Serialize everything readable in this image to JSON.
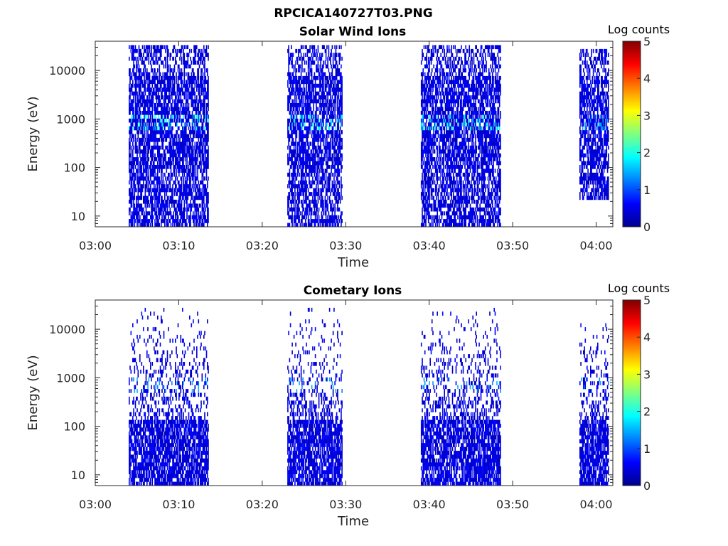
{
  "figure": {
    "title": "RPCICA140727T03.PNG"
  },
  "colormap": [
    "#00008f",
    "#0000ff",
    "#0080ff",
    "#00ffff",
    "#80ff80",
    "#ffff00",
    "#ff8000",
    "#ff0000",
    "#800000"
  ],
  "chart_data": [
    {
      "type": "heatmap",
      "title": "Solar Wind Ions",
      "xlabel": "Time",
      "ylabel": "Energy (eV)",
      "x_ticks": [
        "03:00",
        "03:10",
        "03:20",
        "03:30",
        "03:40",
        "03:50",
        "04:00"
      ],
      "xlim": [
        "03:00",
        "04:02"
      ],
      "y_scale": "log",
      "y_ticks": [
        10,
        100,
        1000,
        10000
      ],
      "ylim": [
        6,
        40000
      ],
      "colorbar": {
        "label": "Log counts",
        "ticks": [
          0,
          1,
          2,
          3,
          4,
          5
        ],
        "range": [
          0,
          5
        ]
      },
      "bursts": [
        {
          "start": "03:04",
          "end": "03:13.5",
          "emax": 40000,
          "emin": 6,
          "peak_energy": 900,
          "peak_log_counts": 2
        },
        {
          "start": "03:23",
          "end": "03:29.5",
          "emax": 40000,
          "emin": 6,
          "peak_energy": 800,
          "peak_log_counts": 2
        },
        {
          "start": "03:39",
          "end": "03:48.5",
          "emax": 40000,
          "emin": 6,
          "peak_energy": 800,
          "peak_log_counts": 2
        },
        {
          "start": "03:58",
          "end": "04:01.5",
          "emax": 30000,
          "emin": 20,
          "peak_energy": 800,
          "peak_log_counts": 1.5
        }
      ]
    },
    {
      "type": "heatmap",
      "title": "Cometary Ions",
      "xlabel": "Time",
      "ylabel": "Energy (eV)",
      "x_ticks": [
        "03:00",
        "03:10",
        "03:20",
        "03:30",
        "03:40",
        "03:50",
        "04:00"
      ],
      "xlim": [
        "03:00",
        "04:02"
      ],
      "y_scale": "log",
      "y_ticks": [
        10,
        100,
        1000,
        10000
      ],
      "ylim": [
        6,
        40000
      ],
      "colorbar": {
        "label": "Log counts",
        "ticks": [
          0,
          1,
          2,
          3,
          4,
          5
        ],
        "range": [
          0,
          5
        ]
      },
      "bursts": [
        {
          "start": "03:04",
          "end": "03:13.5",
          "emax": 30000,
          "emin": 6,
          "peak_energy": 700,
          "peak_log_counts": 1.5
        },
        {
          "start": "03:23",
          "end": "03:29.5",
          "emax": 30000,
          "emin": 6,
          "peak_energy": 700,
          "peak_log_counts": 1.5
        },
        {
          "start": "03:39",
          "end": "03:48.5",
          "emax": 30000,
          "emin": 6,
          "peak_energy": 700,
          "peak_log_counts": 1.5
        },
        {
          "start": "03:58",
          "end": "04:01.5",
          "emax": 15000,
          "emin": 6,
          "peak_energy": 700,
          "peak_log_counts": 1.5
        }
      ]
    }
  ]
}
